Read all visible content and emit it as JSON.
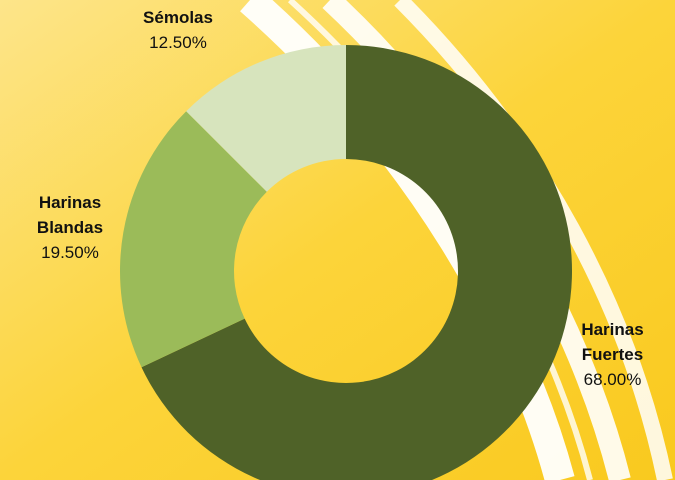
{
  "chart_data": {
    "type": "pie",
    "categories": [
      "Harinas Fuertes",
      "Harinas Blandas",
      "Sémolas"
    ],
    "values": [
      68,
      19.5,
      12.5
    ],
    "value_labels": [
      "68.00%",
      "19.50%",
      "12.50%"
    ],
    "colors": [
      "#4f6228",
      "#9bbb59",
      "#d7e4bd"
    ],
    "donut": true
  }
}
